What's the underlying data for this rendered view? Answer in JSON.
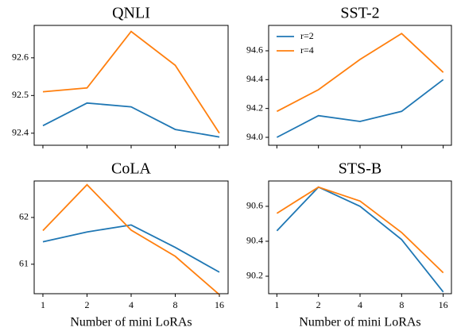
{
  "chart_data": [
    {
      "type": "line",
      "title": "QNLI",
      "categories": [
        null,
        null,
        null,
        null,
        null
      ],
      "series": [
        {
          "color": "#1f77b4",
          "values": [
            92.42,
            92.48,
            92.47,
            92.41,
            92.39
          ]
        },
        {
          "color": "#ff7f0e",
          "values": [
            92.51,
            92.52,
            92.67,
            92.58,
            92.4
          ]
        }
      ],
      "ylim": [
        92.368,
        92.686
      ],
      "yticks": [
        92.4,
        92.5,
        92.6
      ]
    },
    {
      "type": "line",
      "title": "SST-2",
      "categories": [
        null,
        null,
        null,
        null,
        null
      ],
      "series": [
        {
          "name": "r=2",
          "color": "#1f77b4",
          "values": [
            94.0,
            94.15,
            94.11,
            94.18,
            94.4
          ]
        },
        {
          "name": "r=4",
          "color": "#ff7f0e",
          "values": [
            94.18,
            94.33,
            94.54,
            94.72,
            94.45
          ]
        }
      ],
      "ylim": [
        93.945,
        94.776
      ],
      "yticks": [
        {
          "value": 94,
          "label": "94.0"
        },
        94.2,
        94.4,
        94.6
      ],
      "legend": "upper left"
    },
    {
      "type": "line",
      "title": "CoLA",
      "x_label": "Number of mini LoRAs",
      "categories": [
        "1",
        "2",
        "4",
        "8",
        "16"
      ],
      "series": [
        {
          "color": "#1f77b4",
          "values": [
            61.48,
            61.69,
            61.84,
            61.36,
            60.83
          ]
        },
        {
          "color": "#ff7f0e",
          "values": [
            61.72,
            62.7,
            61.73,
            61.17,
            60.35
          ]
        }
      ],
      "ylim": [
        60.37,
        62.78
      ],
      "yticks": [
        61,
        62
      ]
    },
    {
      "type": "line",
      "title": "STS-B",
      "x_label": "Number of mini LoRAs",
      "categories": [
        "1",
        "2",
        "4",
        "8",
        "16"
      ],
      "series": [
        {
          "color": "#1f77b4",
          "values": [
            90.46,
            90.71,
            90.6,
            90.41,
            90.11
          ]
        },
        {
          "color": "#ff7f0e",
          "values": [
            90.56,
            90.71,
            90.63,
            90.45,
            90.22
          ]
        }
      ],
      "ylim": [
        90.1,
        90.745
      ],
      "yticks": [
        90.2,
        90.4,
        90.6
      ]
    }
  ]
}
